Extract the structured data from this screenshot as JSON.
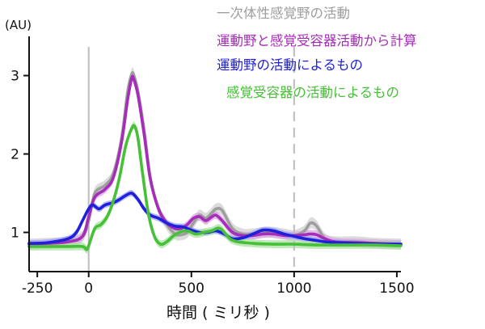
{
  "chart_data": {
    "type": "line",
    "title": "",
    "xlabel": "時間 ( ミリ秒 )",
    "ylabel": "(AU)",
    "xlim": [
      -290,
      1520
    ],
    "ylim": [
      0.5,
      3.5
    ],
    "x_ticks": [
      -250,
      0,
      500,
      1000,
      1500
    ],
    "x_tick_labels": [
      "-250",
      "0",
      "500",
      "1000",
      "1500"
    ],
    "y_ticks": [
      1,
      2,
      3
    ],
    "y_tick_labels": [
      "1",
      "2",
      "3"
    ],
    "reference_lines": [
      {
        "x": 0,
        "style": "solid",
        "color": "#bdbdbd"
      },
      {
        "x": 1000,
        "style": "dashed",
        "color": "#bdbdbd"
      }
    ],
    "grid": false,
    "legend_position": "top-right",
    "series": [
      {
        "name": "一次体性感覚野の活動",
        "color": "#9e9e9e",
        "band_color": "#d0d0d0",
        "x": [
          -290,
          -200,
          -100,
          -30,
          0,
          30,
          80,
          120,
          160,
          190,
          210,
          220,
          240,
          270,
          300,
          340,
          380,
          420,
          450,
          480,
          510,
          540,
          570,
          600,
          620,
          650,
          700,
          750,
          800,
          850,
          900,
          950,
          1000,
          1050,
          1080,
          1110,
          1150,
          1200,
          1300,
          1400,
          1520
        ],
        "y": [
          0.85,
          0.86,
          0.88,
          0.95,
          1.15,
          1.5,
          1.6,
          1.75,
          2.2,
          2.8,
          3.02,
          3.0,
          2.8,
          2.3,
          1.7,
          1.3,
          1.1,
          0.98,
          0.97,
          1.0,
          1.12,
          1.22,
          1.18,
          1.25,
          1.3,
          1.28,
          1.05,
          0.98,
          0.98,
          1.0,
          1.0,
          0.98,
          0.96,
          1.02,
          1.12,
          1.08,
          0.92,
          0.88,
          0.88,
          0.86,
          0.85
        ],
        "band": 0.07
      },
      {
        "name": "運動野と感覚受容器活動から計算",
        "color": "#a52db8",
        "band_color": "#dca6e6",
        "x": [
          -290,
          -200,
          -100,
          -30,
          0,
          30,
          80,
          120,
          160,
          190,
          210,
          220,
          240,
          270,
          300,
          340,
          380,
          420,
          450,
          480,
          510,
          540,
          570,
          600,
          620,
          650,
          700,
          750,
          800,
          850,
          900,
          950,
          1000,
          1050,
          1080,
          1110,
          1150,
          1200,
          1300,
          1400,
          1520
        ],
        "y": [
          0.85,
          0.86,
          0.88,
          0.95,
          1.2,
          1.45,
          1.55,
          1.7,
          2.15,
          2.7,
          2.97,
          2.95,
          2.75,
          2.25,
          1.68,
          1.3,
          1.12,
          1.05,
          1.05,
          1.1,
          1.18,
          1.2,
          1.15,
          1.2,
          1.22,
          1.15,
          1.0,
          0.96,
          0.96,
          0.98,
          0.98,
          0.96,
          0.96,
          0.97,
          0.98,
          0.97,
          0.92,
          0.88,
          0.87,
          0.86,
          0.85
        ],
        "band": 0.05
      },
      {
        "name": "運動野の活動によるもの",
        "color": "#1f1fdc",
        "band_color": "#9fa6f5",
        "x": [
          -290,
          -200,
          -100,
          -60,
          -30,
          0,
          20,
          50,
          80,
          120,
          150,
          180,
          210,
          240,
          270,
          300,
          340,
          380,
          420,
          460,
          500,
          540,
          580,
          620,
          660,
          700,
          750,
          800,
          850,
          900,
          950,
          1000,
          1050,
          1100,
          1150,
          1200,
          1300,
          1400,
          1520
        ],
        "y": [
          0.86,
          0.87,
          0.92,
          1.0,
          1.15,
          1.3,
          1.35,
          1.3,
          1.35,
          1.38,
          1.42,
          1.47,
          1.5,
          1.42,
          1.3,
          1.22,
          1.18,
          1.12,
          1.08,
          1.07,
          1.03,
          1.0,
          1.0,
          1.02,
          0.98,
          0.92,
          0.93,
          0.98,
          1.03,
          1.02,
          0.98,
          0.95,
          0.92,
          0.9,
          0.88,
          0.87,
          0.86,
          0.85,
          0.85
        ],
        "band": 0.04
      },
      {
        "name": "感覚受容器の活動によるもの",
        "color": "#46c037",
        "band_color": "#a9e2a0",
        "x": [
          -290,
          -200,
          -100,
          -30,
          -10,
          0,
          30,
          60,
          90,
          120,
          150,
          180,
          210,
          225,
          240,
          260,
          290,
          320,
          350,
          380,
          410,
          440,
          480,
          520,
          560,
          600,
          640,
          700,
          800,
          900,
          1000,
          1100,
          1200,
          1300,
          1400,
          1520
        ],
        "y": [
          0.82,
          0.82,
          0.82,
          0.82,
          0.78,
          0.83,
          1.05,
          1.1,
          1.2,
          1.4,
          1.7,
          2.1,
          2.33,
          2.35,
          2.2,
          1.8,
          1.25,
          0.95,
          0.85,
          0.88,
          0.95,
          1.0,
          1.02,
          0.98,
          1.0,
          1.02,
          1.05,
          0.9,
          0.86,
          0.85,
          0.85,
          0.84,
          0.84,
          0.84,
          0.84,
          0.83
        ],
        "band": 0.05
      }
    ]
  }
}
